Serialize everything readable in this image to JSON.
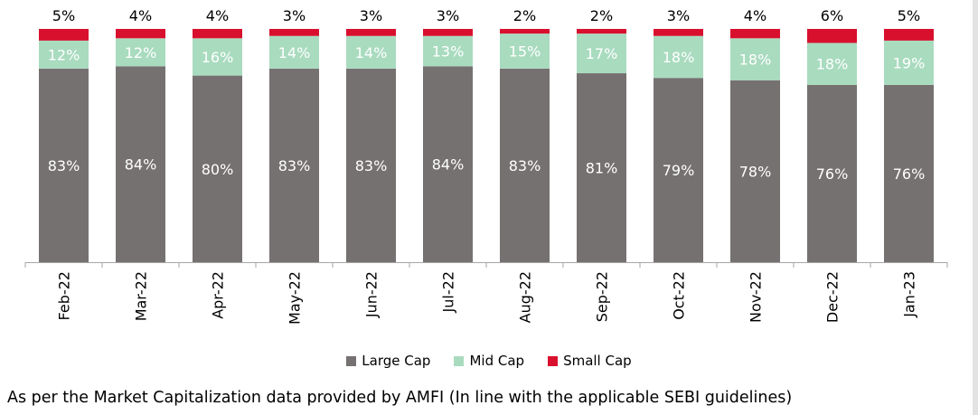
{
  "chart_data": {
    "type": "bar",
    "stacked": true,
    "categories": [
      "Feb-22",
      "Mar-22",
      "Apr-22",
      "May-22",
      "Jun-22",
      "Jul-22",
      "Aug-22",
      "Sep-22",
      "Oct-22",
      "Nov-22",
      "Dec-22",
      "Jan-23"
    ],
    "series": [
      {
        "name": "Large Cap",
        "color": "#767171",
        "values": [
          83,
          84,
          80,
          83,
          83,
          84,
          83,
          81,
          79,
          78,
          76,
          76
        ]
      },
      {
        "name": "Mid Cap",
        "color": "#a9dbbf",
        "values": [
          12,
          12,
          16,
          14,
          14,
          13,
          15,
          17,
          18,
          18,
          18,
          19
        ]
      },
      {
        "name": "Small Cap",
        "color": "#d8102e",
        "values": [
          5,
          4,
          4,
          3,
          3,
          3,
          2,
          2,
          3,
          4,
          6,
          5
        ]
      }
    ],
    "ylim": [
      0,
      100
    ],
    "title": "",
    "xlabel": "",
    "ylabel": "",
    "grid": false,
    "legend_position": "bottom"
  },
  "footnote": "As per the Market Capitalization data provided by AMFI (In line with the applicable SEBI guidelines)"
}
